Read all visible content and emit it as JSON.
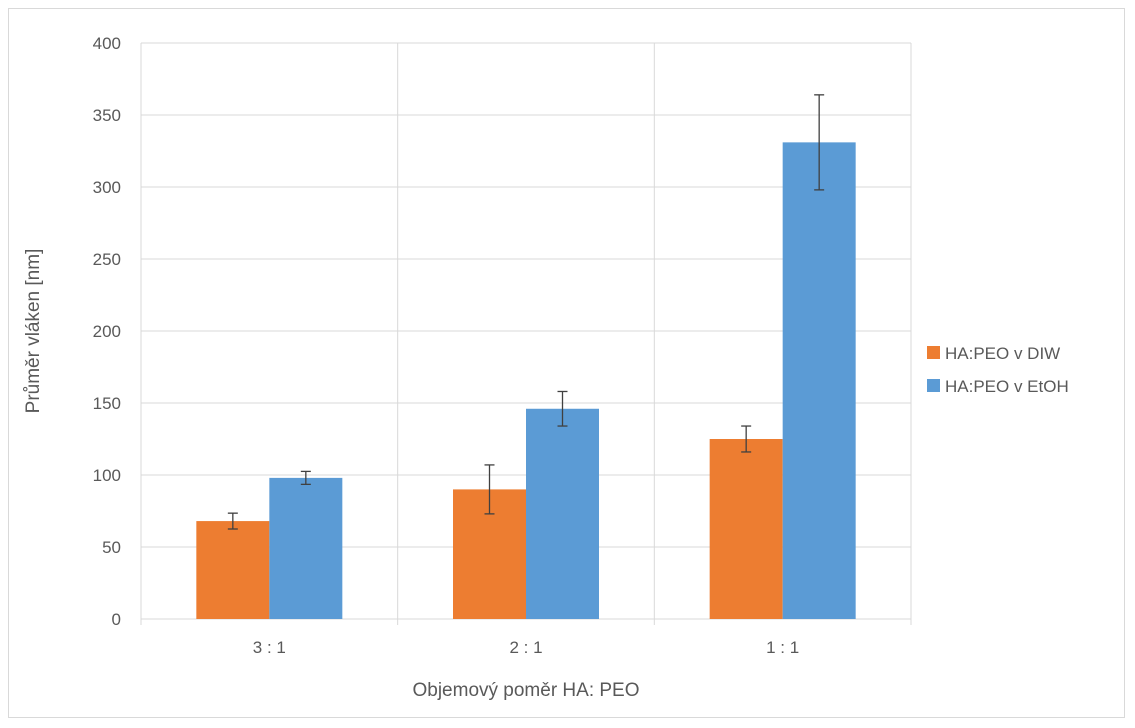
{
  "chart_data": {
    "type": "bar",
    "title": "",
    "xlabel": "Objemový poměr HA: PEO",
    "ylabel": "Průměr vláken [nm]",
    "categories": [
      "3 : 1",
      "2 : 1",
      "1 : 1"
    ],
    "ylim": [
      0,
      400
    ],
    "yticks": [
      0,
      50,
      100,
      150,
      200,
      250,
      300,
      350,
      400
    ],
    "grid": true,
    "legend_position": "right",
    "series": [
      {
        "name": "HA:PEO v DIW",
        "color": "#ed7d31",
        "values": [
          68,
          90,
          125
        ],
        "errors": [
          5.5,
          17,
          9
        ]
      },
      {
        "name": "HA:PEO v EtOH",
        "color": "#5b9bd5",
        "values": [
          98,
          146,
          331
        ],
        "errors": [
          4.5,
          12,
          33
        ]
      }
    ]
  }
}
